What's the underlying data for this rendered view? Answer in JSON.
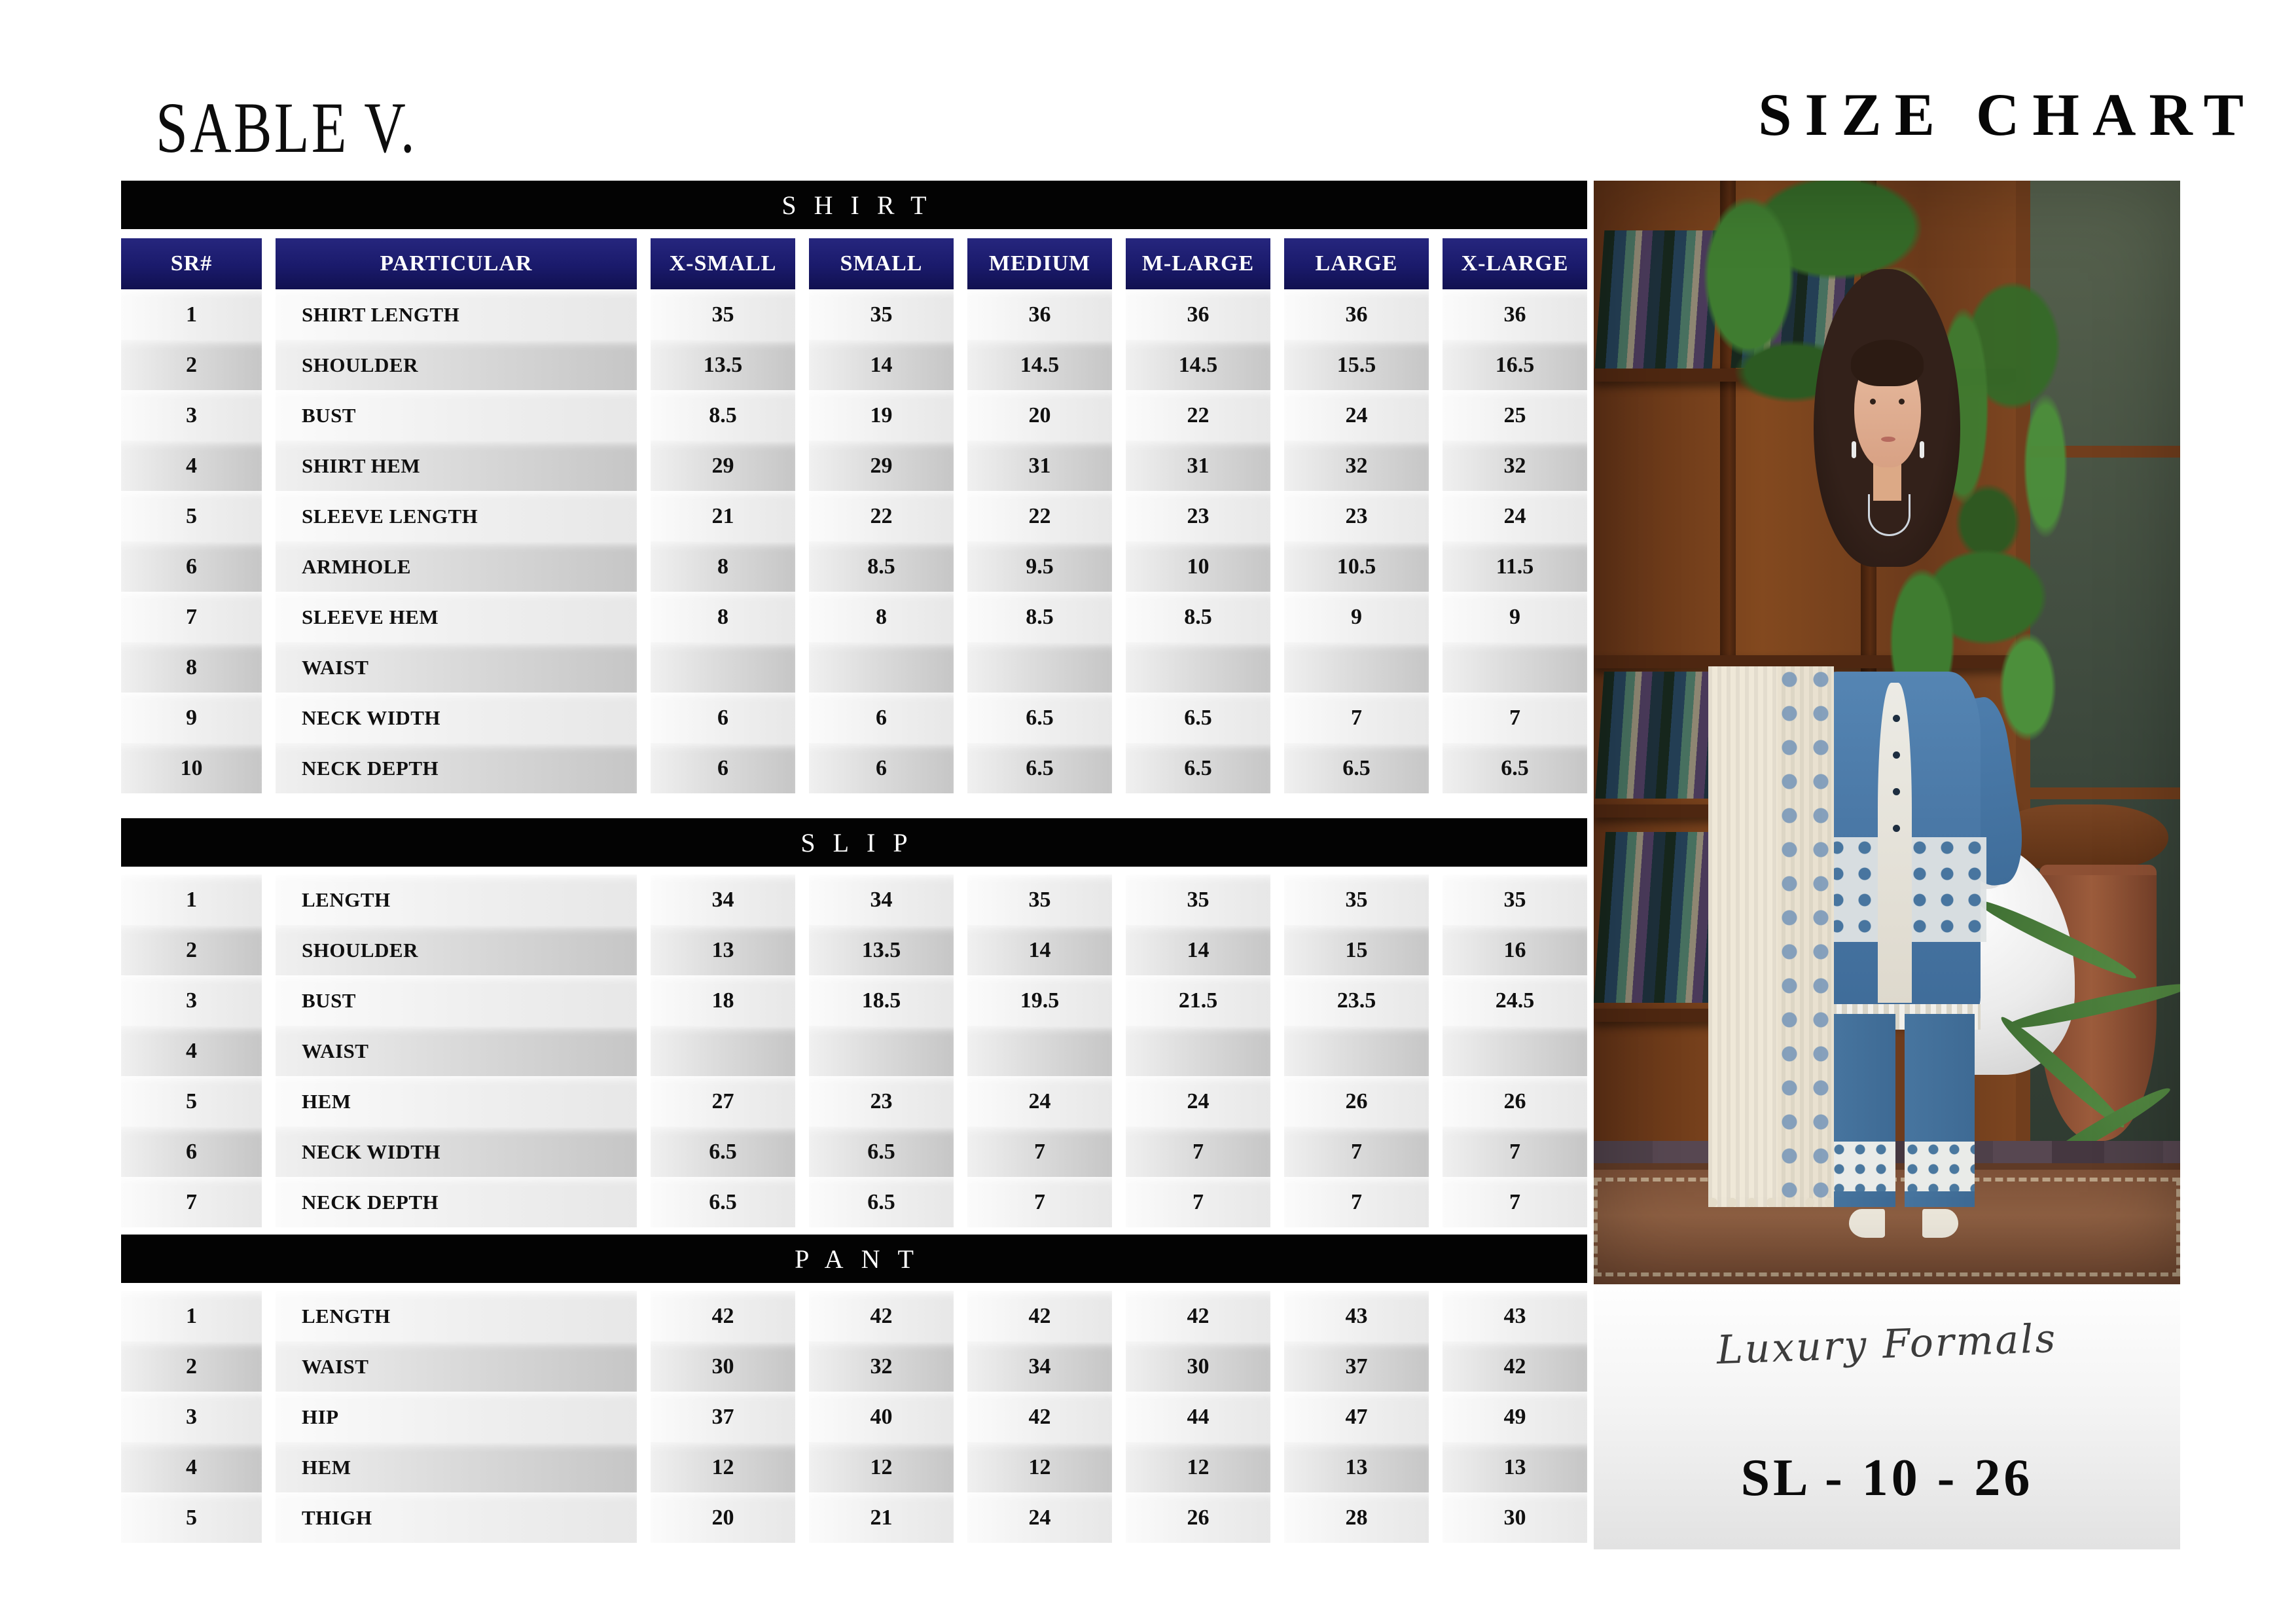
{
  "brand": {
    "logo": "SABLE V.",
    "page_title": "SIZE CHART"
  },
  "columns": [
    "SR#",
    "PARTICULAR",
    "X-SMALL",
    "SMALL",
    "MEDIUM",
    "M-LARGE",
    "LARGE",
    "X-LARGE"
  ],
  "sections": [
    {
      "name": "SHIRT",
      "has_header": true,
      "rows": [
        {
          "sr": "1",
          "particular": "SHIRT LENGTH",
          "values": [
            "35",
            "35",
            "36",
            "36",
            "36",
            "36"
          ]
        },
        {
          "sr": "2",
          "particular": "SHOULDER",
          "values": [
            "13.5",
            "14",
            "14.5",
            "14.5",
            "15.5",
            "16.5"
          ]
        },
        {
          "sr": "3",
          "particular": "BUST",
          "values": [
            "8.5",
            "19",
            "20",
            "22",
            "24",
            "25"
          ]
        },
        {
          "sr": "4",
          "particular": "SHIRT HEM",
          "values": [
            "29",
            "29",
            "31",
            "31",
            "32",
            "32"
          ]
        },
        {
          "sr": "5",
          "particular": "SLEEVE LENGTH",
          "values": [
            "21",
            "22",
            "22",
            "23",
            "23",
            "24"
          ]
        },
        {
          "sr": "6",
          "particular": "ARMHOLE",
          "values": [
            "8",
            "8.5",
            "9.5",
            "10",
            "10.5",
            "11.5"
          ]
        },
        {
          "sr": "7",
          "particular": "SLEEVE HEM",
          "values": [
            "8",
            "8",
            "8.5",
            "8.5",
            "9",
            "9"
          ]
        },
        {
          "sr": "8",
          "particular": "WAIST",
          "values": [
            "",
            "",
            "",
            "",
            "",
            ""
          ]
        },
        {
          "sr": "9",
          "particular": "NECK WIDTH",
          "values": [
            "6",
            "6",
            "6.5",
            "6.5",
            "7",
            "7"
          ]
        },
        {
          "sr": "10",
          "particular": "NECK DEPTH",
          "values": [
            "6",
            "6",
            "6.5",
            "6.5",
            "6.5",
            "6.5"
          ]
        }
      ]
    },
    {
      "name": "SLIP",
      "has_header": false,
      "rows": [
        {
          "sr": "1",
          "particular": "LENGTH",
          "values": [
            "34",
            "34",
            "35",
            "35",
            "35",
            "35"
          ]
        },
        {
          "sr": "2",
          "particular": "SHOULDER",
          "values": [
            "13",
            "13.5",
            "14",
            "14",
            "15",
            "16"
          ]
        },
        {
          "sr": "3",
          "particular": "BUST",
          "values": [
            "18",
            "18.5",
            "19.5",
            "21.5",
            "23.5",
            "24.5"
          ]
        },
        {
          "sr": "4",
          "particular": "WAIST",
          "values": [
            "",
            "",
            "",
            "",
            "",
            ""
          ]
        },
        {
          "sr": "5",
          "particular": "HEM",
          "values": [
            "27",
            "23",
            "24",
            "24",
            "26",
            "26"
          ]
        },
        {
          "sr": "6",
          "particular": "NECK WIDTH",
          "values": [
            "6.5",
            "6.5",
            "7",
            "7",
            "7",
            "7"
          ]
        },
        {
          "sr": "7",
          "particular": "NECK DEPTH",
          "values": [
            "6.5",
            "6.5",
            "7",
            "7",
            "7",
            "7"
          ]
        }
      ]
    },
    {
      "name": "PANT",
      "has_header": false,
      "rows": [
        {
          "sr": "1",
          "particular": "LENGTH",
          "values": [
            "42",
            "42",
            "42",
            "42",
            "43",
            "43"
          ]
        },
        {
          "sr": "2",
          "particular": "WAIST",
          "values": [
            "30",
            "32",
            "34",
            "30",
            "37",
            "42"
          ]
        },
        {
          "sr": "3",
          "particular": "HIP",
          "values": [
            "37",
            "40",
            "42",
            "44",
            "47",
            "49"
          ]
        },
        {
          "sr": "4",
          "particular": "HEM",
          "values": [
            "12",
            "12",
            "12",
            "12",
            "13",
            "13"
          ]
        },
        {
          "sr": "5",
          "particular": "THIGH",
          "values": [
            "20",
            "21",
            "24",
            "26",
            "28",
            "30"
          ]
        }
      ]
    }
  ],
  "footer": {
    "collection": "Luxury Formals",
    "sku": "SL - 10 - 26"
  },
  "colors": {
    "header_navy": "#1a1a6b",
    "section_bar": "#030303",
    "outfit_blue": "#4a78a6"
  }
}
